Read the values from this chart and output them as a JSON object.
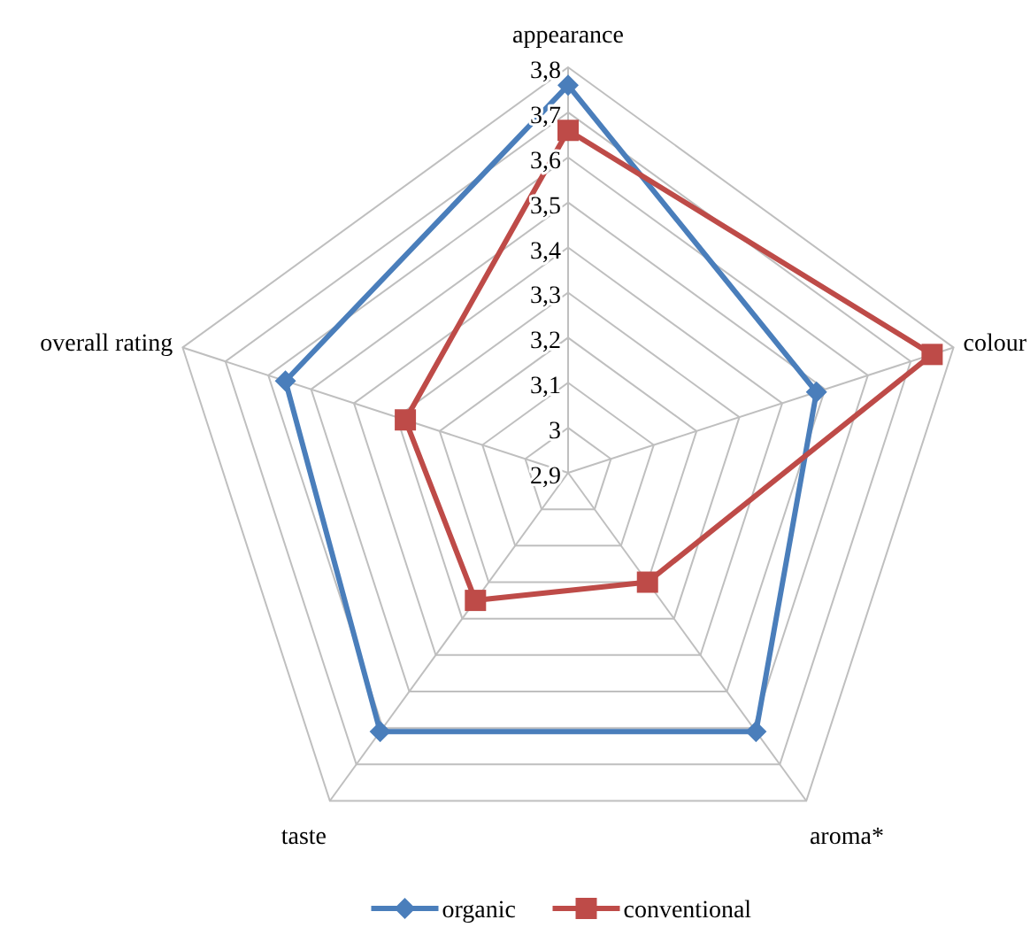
{
  "chart_data": {
    "type": "radar",
    "categories": [
      "appearance",
      "colour",
      "aroma*",
      "taste",
      "overall rating"
    ],
    "ylim": [
      2.9,
      3.8
    ],
    "yticks": [
      {
        "value": 2.9,
        "label": "2,9"
      },
      {
        "value": 3,
        "label": "3"
      },
      {
        "value": 3.1,
        "label": "3,1"
      },
      {
        "value": 3.2,
        "label": "3,2"
      },
      {
        "value": 3.3,
        "label": "3,3"
      },
      {
        "value": 3.4,
        "label": "3,4"
      },
      {
        "value": 3.5,
        "label": "3,5"
      },
      {
        "value": 3.6,
        "label": "3,6"
      },
      {
        "value": 3.7,
        "label": "3,7"
      },
      {
        "value": 3.8,
        "label": "3,8"
      }
    ],
    "grid": true,
    "legend": "bottom",
    "series": [
      {
        "name": "organic",
        "color": "#4a7ebb",
        "marker": "diamond",
        "values": [
          3.76,
          3.48,
          3.61,
          3.61,
          3.56
        ]
      },
      {
        "name": "conventional",
        "color": "#be4b48",
        "marker": "square",
        "values": [
          3.66,
          3.75,
          3.2,
          3.25,
          3.28
        ]
      }
    ]
  }
}
